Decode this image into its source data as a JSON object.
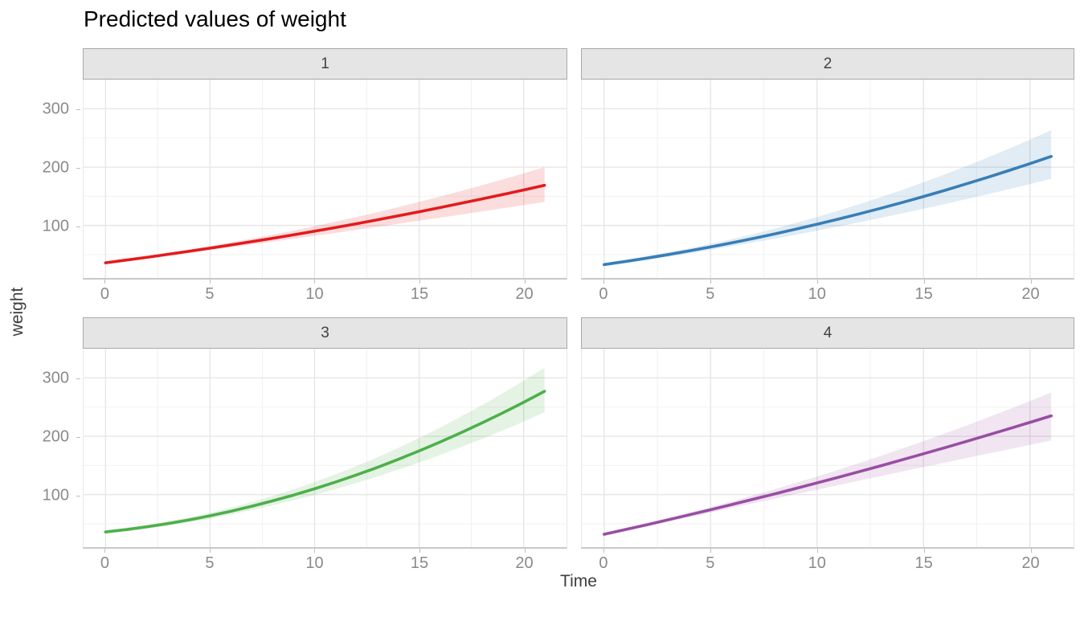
{
  "title": "Predicted values of weight",
  "axes": {
    "x_label": "Time",
    "y_label": "weight"
  },
  "chart_data": {
    "type": "line",
    "title": "Predicted values of weight",
    "xlabel": "Time",
    "ylabel": "weight",
    "legend": "none",
    "grid": true,
    "facet_layout": "2x2",
    "x_domain": [
      -1.05,
      22.05
    ],
    "y_domain": [
      10,
      350
    ],
    "x_ticks": [
      0,
      5,
      10,
      15,
      20
    ],
    "y_ticks": [
      100,
      200,
      300
    ],
    "x_minor": [
      2.5,
      7.5,
      12.5,
      17.5
    ],
    "y_minor": [
      50,
      150,
      250,
      350
    ],
    "grid_major_color": "#e6e6e6",
    "grid_minor_color": "#f2f2f2",
    "ribbon_opacity": 0.15,
    "x": [
      0,
      1,
      2,
      3,
      4,
      5,
      6,
      7,
      8,
      9,
      10,
      11,
      12,
      13,
      14,
      15,
      16,
      17,
      18,
      19,
      20,
      21
    ],
    "facets": [
      {
        "label": "1",
        "color": "#e41a1c",
        "line": [
          36.0,
          40.7,
          45.5,
          50.5,
          55.7,
          61.1,
          66.6,
          72.2,
          78.0,
          84.0,
          90.2,
          96.5,
          103.0,
          109.7,
          116.5,
          123.5,
          130.6,
          137.9,
          145.4,
          153.0,
          160.8,
          168.8
        ],
        "upper": [
          38.0,
          42.8,
          47.8,
          53.1,
          58.8,
          64.8,
          71.0,
          77.4,
          84.2,
          91.3,
          98.8,
          106.5,
          114.5,
          122.8,
          131.4,
          140.3,
          149.5,
          159.0,
          168.8,
          178.8,
          189.2,
          199.9
        ],
        "lower": [
          34.0,
          38.6,
          43.3,
          48.0,
          52.7,
          57.6,
          62.4,
          67.3,
          72.2,
          77.1,
          82.2,
          87.2,
          92.4,
          97.6,
          102.7,
          108.0,
          113.2,
          118.6,
          124.0,
          129.3,
          134.8,
          140.3
        ]
      },
      {
        "label": "2",
        "color": "#377eb8",
        "line": [
          33.0,
          38.3,
          44.0,
          50.0,
          56.4,
          63.1,
          70.2,
          77.6,
          85.4,
          93.5,
          102.0,
          110.8,
          120.0,
          129.5,
          139.3,
          149.6,
          160.1,
          171.1,
          182.3,
          193.9,
          205.9,
          218.2
        ],
        "upper": [
          36.0,
          41.4,
          47.4,
          53.9,
          60.9,
          68.5,
          76.6,
          85.3,
          94.5,
          104.2,
          114.5,
          125.3,
          136.7,
          148.6,
          160.9,
          174.0,
          187.4,
          201.6,
          216.1,
          231.2,
          246.9,
          263.1
        ],
        "lower": [
          30.0,
          35.2,
          40.7,
          46.3,
          52.1,
          58.1,
          64.3,
          70.7,
          77.3,
          84.0,
          91.0,
          98.1,
          105.5,
          113.0,
          120.6,
          128.6,
          136.6,
          145.0,
          153.4,
          162.0,
          170.9,
          179.9
        ]
      },
      {
        "label": "3",
        "color": "#4daf4a",
        "line": [
          36.0,
          40.1,
          44.9,
          50.4,
          56.7,
          63.7,
          71.5,
          80.1,
          89.3,
          99.2,
          110.0,
          121.4,
          133.7,
          146.6,
          160.3,
          174.8,
          190.0,
          205.9,
          222.6,
          240.0,
          258.1,
          277.0
        ],
        "upper": [
          39.0,
          43.2,
          48.2,
          54.2,
          61.1,
          68.8,
          77.6,
          87.3,
          97.7,
          109.1,
          121.5,
          134.7,
          148.9,
          163.9,
          179.9,
          196.9,
          214.8,
          233.5,
          253.1,
          273.7,
          295.1,
          317.5
        ],
        "lower": [
          33.0,
          37.0,
          41.6,
          46.7,
          52.5,
          58.8,
          65.8,
          73.4,
          81.5,
          90.1,
          99.5,
          109.3,
          119.9,
          130.9,
          142.6,
          154.9,
          167.8,
          181.2,
          195.3,
          209.9,
          225.1,
          240.9
        ]
      },
      {
        "label": "4",
        "color": "#984ea3",
        "line": [
          32.0,
          40.1,
          48.3,
          56.7,
          65.3,
          74.0,
          82.9,
          92.0,
          101.1,
          110.5,
          120.0,
          129.6,
          139.5,
          149.4,
          159.6,
          169.9,
          180.3,
          190.9,
          201.7,
          212.6,
          223.7,
          234.9
        ],
        "upper": [
          34.5,
          42.7,
          51.1,
          60.0,
          69.2,
          78.6,
          88.5,
          98.7,
          109.0,
          119.9,
          131.0,
          142.4,
          154.2,
          166.3,
          178.8,
          191.5,
          204.6,
          218.0,
          231.7,
          245.8,
          260.2,
          274.9
        ],
        "lower": [
          29.5,
          37.5,
          45.4,
          53.4,
          61.4,
          69.3,
          77.2,
          85.1,
          92.8,
          100.7,
          108.5,
          116.2,
          124.0,
          131.7,
          139.5,
          147.2,
          154.8,
          162.4,
          170.0,
          177.6,
          185.2,
          192.7
        ]
      }
    ]
  }
}
